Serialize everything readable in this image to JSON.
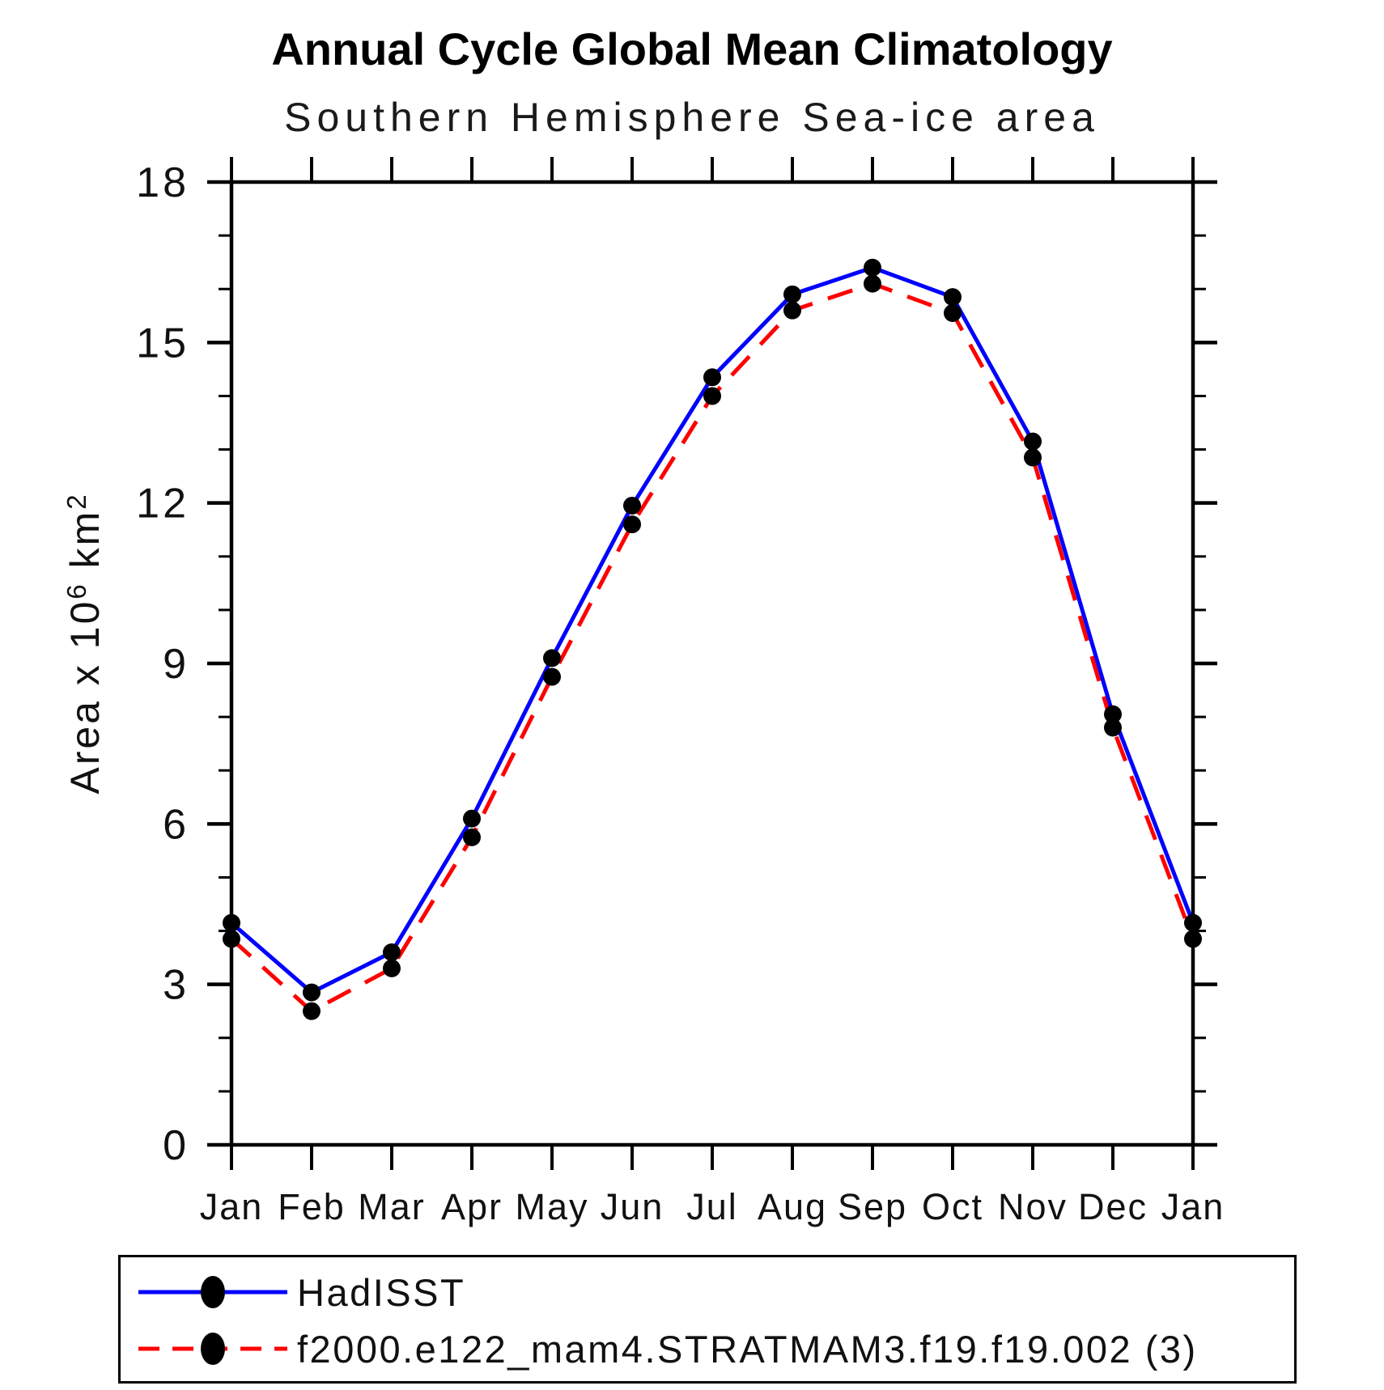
{
  "chart_data": {
    "type": "line",
    "title": "Annual Cycle Global Mean Climatology",
    "subtitle": "Southern Hemisphere Sea-ice area",
    "ylabel_parts": {
      "base1": "Area x 10",
      "sup1": "6",
      "base2": " km",
      "sup2": "2"
    },
    "x_categories": [
      "Jan",
      "Feb",
      "Mar",
      "Apr",
      "May",
      "Jun",
      "Jul",
      "Aug",
      "Sep",
      "Oct",
      "Nov",
      "Dec",
      "Jan"
    ],
    "ylim": [
      0,
      18
    ],
    "yticks_major": [
      0,
      3,
      6,
      9,
      12,
      15,
      18
    ],
    "ytick_minor_step": 1,
    "grid": "off",
    "legend_position": "bottom",
    "marker_color": "#000000",
    "axis_color": "#000000",
    "series": [
      {
        "name": "HadISST",
        "color": "#0000ff",
        "style": "solid",
        "marker": "filled-circle",
        "values": [
          4.15,
          2.85,
          3.6,
          6.1,
          9.1,
          11.95,
          14.35,
          15.9,
          16.4,
          15.85,
          13.15,
          8.05,
          4.15
        ]
      },
      {
        "name": "f2000.e122_mam4.STRATMAM3.f19.f19.002 (3)",
        "color": "#ff0000",
        "style": "dashed",
        "marker": "filled-circle",
        "values": [
          3.85,
          2.5,
          3.3,
          5.75,
          8.75,
          11.6,
          14.0,
          15.6,
          16.1,
          15.55,
          12.85,
          7.8,
          3.85
        ]
      }
    ]
  }
}
